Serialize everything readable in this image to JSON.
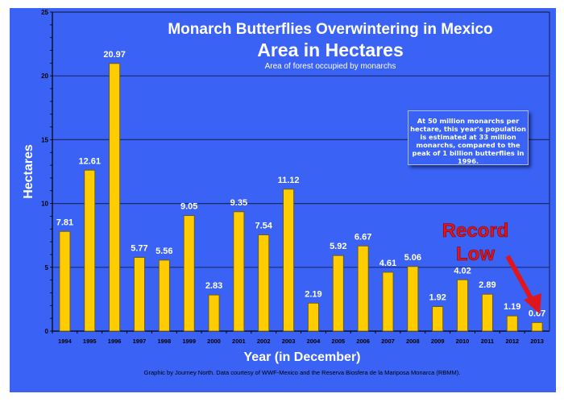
{
  "chart_data": {
    "type": "bar",
    "title": "Monarch Butterflies Overwintering in Mexico",
    "subtitle": "Area in Hectares",
    "caption": "Area of forest occupied by monarchs",
    "xlabel": "Year (in December)",
    "ylabel": "Hectares",
    "ylim": [
      0,
      25
    ],
    "yticks": [
      0,
      5,
      10,
      15,
      20,
      25
    ],
    "grid": true,
    "categories": [
      "1994",
      "1995",
      "1996",
      "1997",
      "1998",
      "1999",
      "2000",
      "2001",
      "2002",
      "2003",
      "2004",
      "2005",
      "2006",
      "2007",
      "2008",
      "2009",
      "2010",
      "2011",
      "2012",
      "2013"
    ],
    "values": [
      7.81,
      12.61,
      20.97,
      5.77,
      5.56,
      9.05,
      2.83,
      9.35,
      7.54,
      11.12,
      2.19,
      5.92,
      6.67,
      4.61,
      5.06,
      1.92,
      4.02,
      2.89,
      1.19,
      0.67
    ],
    "labels": [
      "7.81",
      "12.61",
      "20.97",
      "5.77",
      "5.56",
      "9.05",
      "2.83",
      "9.35",
      "7.54",
      "11.12",
      "2.19",
      "5.92",
      "6.67",
      "4.61",
      "5.06",
      "1.92",
      "4.02",
      "2.89",
      "1.19",
      "0.67"
    ],
    "annotations": {
      "note": "At 50 million monarchs per hectare, this year's population is estimated at 33 million monarchs, compared to the peak of 1 billion butterflies in 1996.",
      "record_line1": "Record",
      "record_line2": "Low"
    },
    "footer": "Graphic by Journey North. Data courtesy of WWF-Mexico and the Reserva Biosfera de la Mariposa Monarca (RBMM)."
  },
  "colors": {
    "background": "#3a63f5",
    "bar": "#ffcc00",
    "accent": "#e0161c"
  }
}
